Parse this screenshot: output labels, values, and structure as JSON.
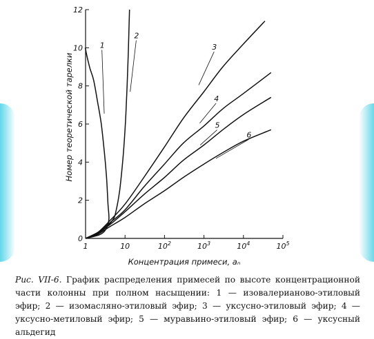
{
  "chart_data": {
    "type": "line",
    "xscale": "log",
    "xlim": [
      1,
      100000
    ],
    "ylim": [
      0,
      12
    ],
    "xlabel": "Концентрация примеси, aₙ",
    "ylabel": "Номер теоретической тарелки",
    "x_ticks": [
      {
        "value": 1,
        "label": "1"
      },
      {
        "value": 10,
        "label": "10"
      },
      {
        "value": 100,
        "label": "10",
        "exp": "2"
      },
      {
        "value": 1000,
        "label": "10",
        "exp": "3"
      },
      {
        "value": 10000,
        "label": "10",
        "exp": "4"
      },
      {
        "value": 100000,
        "label": "10",
        "exp": "5"
      }
    ],
    "y_ticks": [
      0,
      2,
      4,
      6,
      8,
      10,
      12
    ],
    "series": [
      {
        "name": "1",
        "points": [
          [
            0.98,
            10
          ],
          [
            1.1,
            9.5
          ],
          [
            1.3,
            8.9
          ],
          [
            1.6,
            8.3
          ],
          [
            2.0,
            7.2
          ],
          [
            2.5,
            6.0
          ],
          [
            3.0,
            4.5
          ],
          [
            3.4,
            3.2
          ],
          [
            3.7,
            1.8
          ],
          [
            3.9,
            1.0
          ],
          [
            3.3,
            0.5
          ],
          [
            2.3,
            0.2
          ],
          [
            1,
            0
          ]
        ],
        "label_at": [
          2.3,
          10.0
        ]
      },
      {
        "name": "2",
        "points": [
          [
            1,
            0
          ],
          [
            1.8,
            0.2
          ],
          [
            3,
            0.5
          ],
          [
            5,
            1.0
          ],
          [
            6,
            1.5
          ],
          [
            7.3,
            2.5
          ],
          [
            8.5,
            3.8
          ],
          [
            9.5,
            5.0
          ],
          [
            10.5,
            6.5
          ],
          [
            11.3,
            8.0
          ],
          [
            12.0,
            9.5
          ],
          [
            12.6,
            11.0
          ],
          [
            13,
            12
          ]
        ],
        "label_at": [
          17,
          10.5
        ]
      },
      {
        "name": "3",
        "points": [
          [
            1,
            0
          ],
          [
            2,
            0.3
          ],
          [
            4,
            0.9
          ],
          [
            10,
            1.8
          ],
          [
            30,
            3.2
          ],
          [
            100,
            4.8
          ],
          [
            300,
            6.3
          ],
          [
            1000,
            7.7
          ],
          [
            3000,
            9.0
          ],
          [
            10000,
            10.2
          ],
          [
            35000,
            11.4
          ]
        ],
        "label_at": [
          1600,
          9.9
        ]
      },
      {
        "name": "4",
        "points": [
          [
            1,
            0
          ],
          [
            2,
            0.3
          ],
          [
            4,
            0.8
          ],
          [
            10,
            1.5
          ],
          [
            30,
            2.7
          ],
          [
            100,
            3.9
          ],
          [
            300,
            5.0
          ],
          [
            1000,
            5.9
          ],
          [
            3000,
            6.8
          ],
          [
            10000,
            7.6
          ],
          [
            50000,
            8.7
          ]
        ],
        "label_at": [
          1800,
          7.2
        ]
      },
      {
        "name": "5",
        "points": [
          [
            1,
            0
          ],
          [
            2,
            0.3
          ],
          [
            4,
            0.7
          ],
          [
            10,
            1.4
          ],
          [
            30,
            2.3
          ],
          [
            100,
            3.2
          ],
          [
            300,
            4.1
          ],
          [
            1000,
            4.9
          ],
          [
            3000,
            5.7
          ],
          [
            10000,
            6.5
          ],
          [
            50000,
            7.4
          ]
        ],
        "label_at": [
          1900,
          5.8
        ]
      },
      {
        "name": "6",
        "points": [
          [
            1,
            0
          ],
          [
            2,
            0.2
          ],
          [
            4,
            0.6
          ],
          [
            10,
            1.1
          ],
          [
            30,
            1.8
          ],
          [
            100,
            2.5
          ],
          [
            300,
            3.2
          ],
          [
            1000,
            3.9
          ],
          [
            3000,
            4.5
          ],
          [
            10000,
            5.1
          ],
          [
            50000,
            5.7
          ]
        ],
        "label_at": [
          12000,
          5.3
        ]
      }
    ]
  },
  "caption": {
    "lead": "Рис. VII-6.",
    "text": " График распределения примесей по высоте концентрационной части колонны при полном насыщении: 1 — изовалерианово-этиловый эфир; 2 — изомасляно-этиловый эфир; 3 — уксусно-этиловый эфир; 4 — уксусно-метиловый эфир; 5 — муравьино-этиловый эфир; 6 — уксусный альдегид"
  }
}
